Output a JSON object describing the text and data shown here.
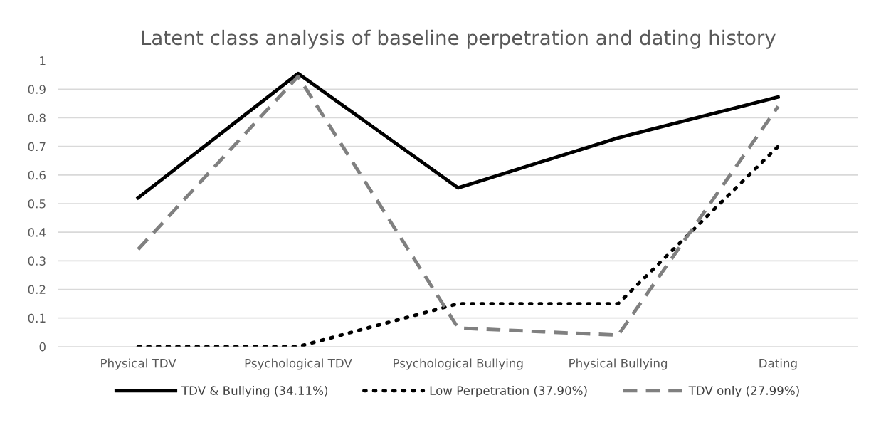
{
  "chart_data": {
    "type": "line",
    "title": "Latent class analysis of baseline perpetration and dating history",
    "categories": [
      "Physical TDV",
      "Psychological TDV",
      "Psychological Bullying",
      "Physical Bullying",
      "Dating"
    ],
    "series": [
      {
        "name": "TDV & Bullying (34.11%)",
        "color": "#000000",
        "line_style": "solid",
        "values": [
          0.52,
          0.955,
          0.555,
          0.73,
          0.873
        ]
      },
      {
        "name": "Low Perpetration (37.90%)",
        "color": "#000000",
        "line_style": "dotted",
        "values": [
          0,
          0,
          0.15,
          0.15,
          0.7
        ]
      },
      {
        "name": "TDV only (27.99%)",
        "color": "#808080",
        "line_style": "dashed",
        "values": [
          0.34,
          0.945,
          0.065,
          0.04,
          0.84
        ]
      }
    ],
    "ylim": [
      0,
      1
    ],
    "yticks": [
      0,
      0.1,
      0.2,
      0.3,
      0.4,
      0.5,
      0.6,
      0.7,
      0.8,
      0.9,
      1
    ],
    "grid": "y",
    "legend": "bottom",
    "marker": "none"
  }
}
